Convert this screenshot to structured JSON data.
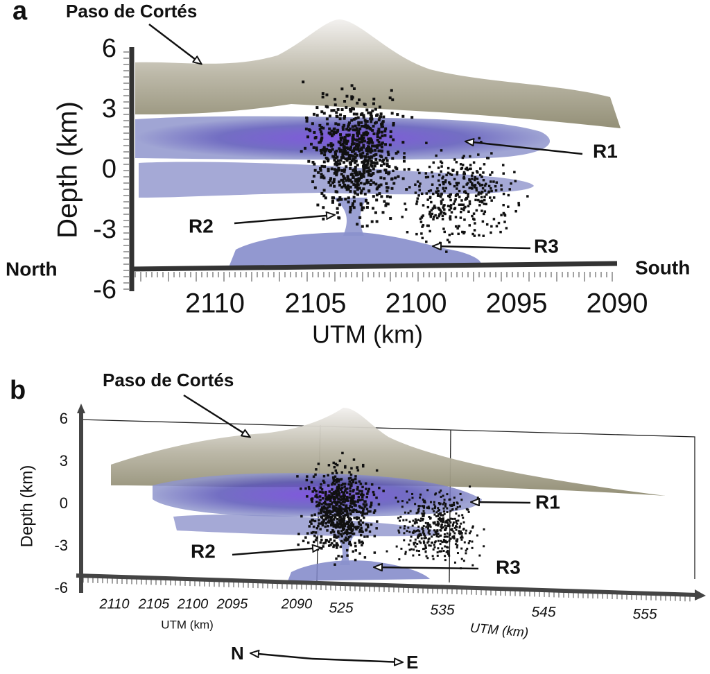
{
  "panels": [
    {
      "label": "a",
      "annotation": "Paso de Cortés",
      "y_axis_label": "Depth (km)",
      "yticks": [
        6,
        3,
        0,
        -3,
        -6
      ],
      "x_axis_label": "UTM (km)",
      "xticks": [
        2110,
        2105,
        2100,
        2095,
        2090
      ],
      "left_label": "North",
      "right_label": "South",
      "regions": [
        "R1",
        "R2",
        "R3"
      ]
    },
    {
      "label": "b",
      "annotation": "Paso de Cortés",
      "y_axis_label": "Depth (km)",
      "yticks": [
        6,
        3,
        0,
        -3,
        -6
      ],
      "x1_label": "UTM (km)",
      "x1ticks": [
        2110,
        2105,
        2100,
        2095,
        2090
      ],
      "x2_label": "UTM (km)",
      "x2ticks": [
        525,
        535,
        545,
        555
      ],
      "regions": [
        "R1",
        "R2",
        "R3"
      ],
      "compass": {
        "north": "N",
        "east": "E"
      }
    }
  ]
}
